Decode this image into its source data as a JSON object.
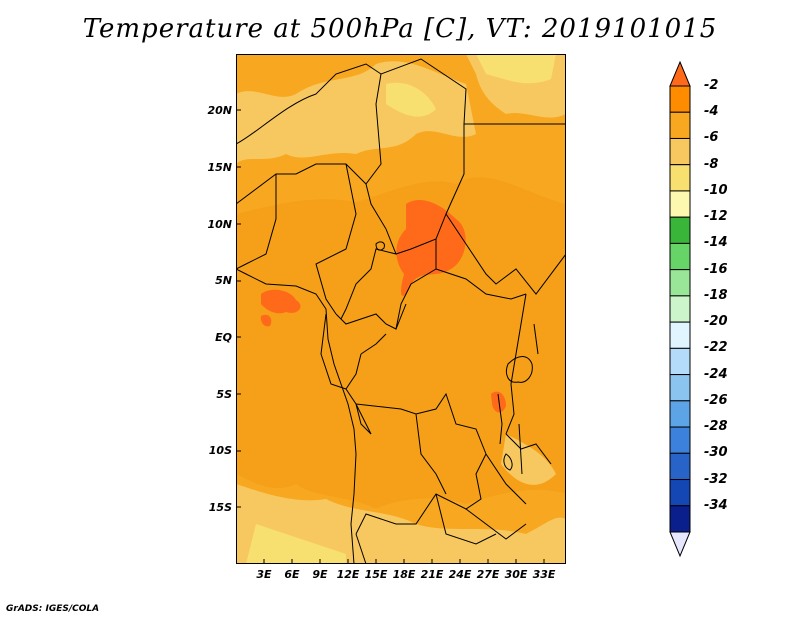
{
  "title": "Temperature at 500hPa [C], VT: 2019101015",
  "credit": "GrADS: IGES/COLA",
  "lat_labels": [
    "20N",
    "15N",
    "10N",
    "5N",
    "EQ",
    "5S",
    "10S",
    "15S"
  ],
  "lon_labels": [
    "3E",
    "6E",
    "9E",
    "12E",
    "15E",
    "18E",
    "21E",
    "24E",
    "27E",
    "30E",
    "33E"
  ],
  "colorbar": {
    "labels": [
      "-2",
      "-4",
      "-6",
      "-8",
      "-10",
      "-12",
      "-14",
      "-16",
      "-18",
      "-20",
      "-22",
      "-24",
      "-26",
      "-28",
      "-30",
      "-32",
      "-34"
    ],
    "colors": [
      "#ff6a1a",
      "#ff8c00",
      "#f8a820",
      "#f8c860",
      "#f8e070",
      "#fcf8b0",
      "#39b539",
      "#66d466",
      "#99e699",
      "#ccf5cc",
      "#e0f5ff",
      "#b4dcfa",
      "#8cc4f0",
      "#5ca4e6",
      "#3c82dc",
      "#2864c8",
      "#1446b4",
      "#0a1e8c",
      "#e6e6ff"
    ]
  }
}
